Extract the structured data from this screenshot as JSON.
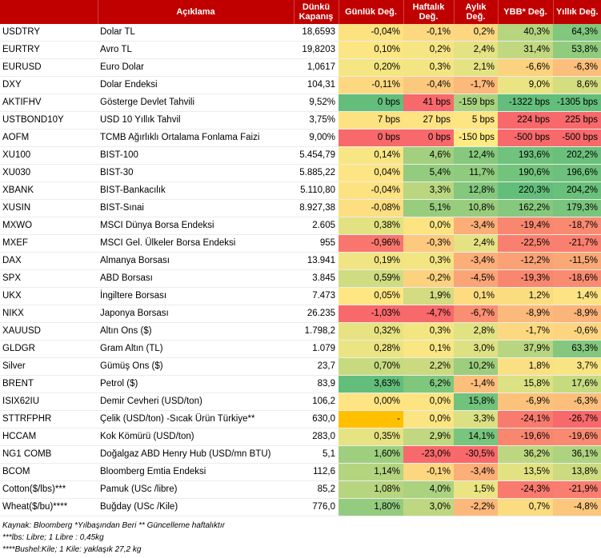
{
  "headers": [
    "",
    "Açıklama",
    "Dünkü Kapanış",
    "Günlük Değ.",
    "Haftalık Değ.",
    "Aylık Değ.",
    "YBB* Değ.",
    "Yıllık Değ."
  ],
  "rows": [
    {
      "code": "USDTRY",
      "desc": "Dolar TL",
      "close": "18,6593",
      "d": "-0,04%",
      "w": "-0,1%",
      "m": "0,2%",
      "ybb": "40,3%",
      "y": "64,3%",
      "colors": [
        "#fde281",
        "#fcd880",
        "#fcd680",
        "#b5d57f",
        "#81c77e"
      ]
    },
    {
      "code": "EURTRY",
      "desc": "Avro TL",
      "close": "19,8203",
      "d": "0,10%",
      "w": "0,2%",
      "m": "2,4%",
      "ybb": "31,4%",
      "y": "53,8%",
      "colors": [
        "#fbe683",
        "#f5e583",
        "#e4e283",
        "#c1d880",
        "#91cc7e"
      ]
    },
    {
      "code": "EURUSD",
      "desc": "Euro Dolar",
      "close": "1,0617",
      "d": "0,20%",
      "w": "0,3%",
      "m": "2,1%",
      "ybb": "-6,6%",
      "y": "-6,3%",
      "colors": [
        "#f3e683",
        "#f4e583",
        "#e5e283",
        "#fcd27f",
        "#fbbe7b"
      ]
    },
    {
      "code": "DXY",
      "desc": "Dolar Endeksi",
      "close": "104,31",
      "d": "-0,11%",
      "w": "-0,4%",
      "m": "-1,7%",
      "ybb": "9,0%",
      "y": "8,6%",
      "colors": [
        "#fdd880",
        "#fcc87d",
        "#fcb97a",
        "#eae483",
        "#d5dd81"
      ]
    },
    {
      "code": "AKTIFHV",
      "desc": "Gösterge Devlet Tahvili",
      "close": "9,52%",
      "d": "0 bps",
      "w": "41 bps",
      "m": "-159 bps",
      "ybb": "-1322 bps",
      "y": "-1305 bps",
      "colors": [
        "#63be7b",
        "#f8696b",
        "#a9d27f",
        "#63be7b",
        "#63be7b"
      ]
    },
    {
      "code": "USTBOND10Y",
      "desc": "USD 10 Yıllık Tahvil",
      "close": "3,75%",
      "d": "7 bps",
      "w": "27 bps",
      "m": "5 bps",
      "ybb": "224 bps",
      "y": "225 bps",
      "colors": [
        "#fde282",
        "#fee383",
        "#fee583",
        "#f8696b",
        "#f8696b"
      ]
    },
    {
      "code": "AOFM",
      "desc": "TCMB Ağırlıklı Ortalama Fonlama Faizi",
      "close": "9,00%",
      "d": "0 bps",
      "w": "0 bps",
      "m": "-150 bps",
      "ybb": "-500 bps",
      "y": "-500 bps",
      "colors": [
        "#f8696b",
        "#f8696b",
        "#ffeb84",
        "#f8696b",
        "#f8696b"
      ]
    },
    {
      "code": "XU100",
      "desc": "BIST-100",
      "close": "5.454,79",
      "d": "0,14%",
      "w": "4,6%",
      "m": "12,4%",
      "ybb": "193,6%",
      "y": "202,2%",
      "colors": [
        "#f7e683",
        "#a2d07f",
        "#86c97e",
        "#70c27c",
        "#6ac07b"
      ]
    },
    {
      "code": "XU030",
      "desc": "BIST-30",
      "close": "5.885,22",
      "d": "0,04%",
      "w": "5,4%",
      "m": "11,7%",
      "ybb": "190,6%",
      "y": "196,6%",
      "colors": [
        "#fee583",
        "#93cc7e",
        "#8ecb7e",
        "#72c37c",
        "#6dc17c"
      ]
    },
    {
      "code": "XBANK",
      "desc": "BIST-Bankacılık",
      "close": "5.110,80",
      "d": "-0,04%",
      "w": "3,3%",
      "m": "12,8%",
      "ybb": "220,3%",
      "y": "204,2%",
      "colors": [
        "#fde281",
        "#bad780",
        "#84c87e",
        "#63be7b",
        "#69c07b"
      ]
    },
    {
      "code": "XUSIN",
      "desc": "BIST-Sınai",
      "close": "8.927,38",
      "d": "-0,08%",
      "w": "5,1%",
      "m": "10,8%",
      "ybb": "162,2%",
      "y": "179,3%",
      "colors": [
        "#fdde81",
        "#98cd7e",
        "#99cd7e",
        "#86c97e",
        "#79c57d"
      ]
    },
    {
      "code": "MXWO",
      "desc": "MSCI Dünya Borsa Endeksi",
      "close": "2.605",
      "d": "0,38%",
      "w": "0,0%",
      "m": "-3,4%",
      "ybb": "-19,4%",
      "y": "-18,7%",
      "colors": [
        "#e2e282",
        "#fce482",
        "#fcae78",
        "#f9876f",
        "#f98a71"
      ]
    },
    {
      "code": "MXEF",
      "desc": "MSCI Gel. Ülkeler Borsa Endeksi",
      "close": "955",
      "d": "-0,96%",
      "w": "-0,3%",
      "m": "2,4%",
      "ybb": "-22,5%",
      "y": "-21,7%",
      "colors": [
        "#f8766e",
        "#fcc97e",
        "#e5e283",
        "#f9806f",
        "#f97f6f"
      ]
    },
    {
      "code": "DAX",
      "desc": "Almanya Borsası",
      "close": "13.941",
      "d": "0,19%",
      "w": "0,3%",
      "m": "-3,4%",
      "ybb": "-12,2%",
      "y": "-11,5%",
      "colors": [
        "#f1e583",
        "#f4e583",
        "#fcae78",
        "#faa275",
        "#faa976"
      ]
    },
    {
      "code": "SPX",
      "desc": "ABD Borsası",
      "close": "3.845",
      "d": "0,59%",
      "w": "-0,2%",
      "m": "-4,5%",
      "ybb": "-19,3%",
      "y": "-18,6%",
      "colors": [
        "#cfdc81",
        "#fcd27f",
        "#fba576",
        "#f9876f",
        "#f98b71"
      ]
    },
    {
      "code": "UKX",
      "desc": "İngiltere Borsası",
      "close": "7.473",
      "d": "0,05%",
      "w": "1,9%",
      "m": "0,1%",
      "ybb": "1,2%",
      "y": "1,4%",
      "colors": [
        "#fee683",
        "#d3dc81",
        "#fddc81",
        "#fbdd81",
        "#fde383"
      ]
    },
    {
      "code": "NIKX",
      "desc": "Japonya Borsası",
      "close": "26.235",
      "d": "-1,03%",
      "w": "-4,7%",
      "m": "-6,7%",
      "ybb": "-8,9%",
      "y": "-8,9%",
      "colors": [
        "#f8696b",
        "#f8696b",
        "#f98f72",
        "#fbba7b",
        "#fbb479"
      ]
    },
    {
      "code": "XAUUSD",
      "desc": "Altın Ons ($)",
      "close": "1.798,2",
      "d": "0,32%",
      "w": "0,3%",
      "m": "2,8%",
      "ybb": "-1,7%",
      "y": "-0,6%",
      "colors": [
        "#e7e382",
        "#f4e583",
        "#e1e282",
        "#fcd880",
        "#fdd580"
      ]
    },
    {
      "code": "GLDGR",
      "desc": "Gram Altın (TL)",
      "close": "1.079",
      "d": "0,28%",
      "w": "0,1%",
      "m": "3,0%",
      "ybb": "37,9%",
      "y": "63,3%",
      "colors": [
        "#ebe482",
        "#fae683",
        "#dee182",
        "#b8d67f",
        "#83c87e"
      ]
    },
    {
      "code": "Silver",
      "desc": "Gümüş Ons ($)",
      "close": "23,7",
      "d": "0,70%",
      "w": "2,2%",
      "m": "10,2%",
      "ybb": "1,8%",
      "y": "3,7%",
      "colors": [
        "#c8da80",
        "#cbda80",
        "#9dce7f",
        "#fae083",
        "#f9e483"
      ]
    },
    {
      "code": "BRENT",
      "desc": "Petrol ($)",
      "close": "83,9",
      "d": "3,63%",
      "w": "6,2%",
      "m": "-1,4%",
      "ybb": "15,8%",
      "y": "17,6%",
      "colors": [
        "#63be7b",
        "#7ec77d",
        "#fcbe7b",
        "#dce183",
        "#c6da80"
      ]
    },
    {
      "code": "ISIX62IU",
      "desc": "Demir Cevheri (USD/ton)",
      "close": "106,2",
      "d": "0,00%",
      "w": "0,0%",
      "m": "15,8%",
      "ybb": "-6,9%",
      "y": "-6,3%",
      "colors": [
        "#fee483",
        "#fce482",
        "#70c27c",
        "#fcc27c",
        "#fbbe7b"
      ]
    },
    {
      "code": "STTRFPHR",
      "desc": "Çelik (USD/ton) -Sıcak Ürün Türkiye**",
      "close": "630,0",
      "d": "-",
      "w": "0,0%",
      "m": "3,3%",
      "ybb": "-24,1%",
      "y": "-26,7%",
      "colors": [
        "#ffc000",
        "#fce482",
        "#dbe082",
        "#f97b6e",
        "#f8696b"
      ]
    },
    {
      "code": "HCCAM",
      "desc": "Kok Kömürü (USD/ton)",
      "close": "283,0",
      "d": "0,35%",
      "w": "2,9%",
      "m": "14,1%",
      "ybb": "-19,6%",
      "y": "-19,6%",
      "colors": [
        "#e6e382",
        "#c1d880",
        "#79c57d",
        "#f9866f",
        "#f98a71"
      ]
    },
    {
      "code": "NG1 COMB",
      "desc": "Doğalgaz ABD Henry Hub (USD/mn BTU)",
      "close": "5,1",
      "d": "1,60%",
      "w": "-23,0%",
      "m": "-30,5%",
      "ybb": "36,2%",
      "y": "36,1%",
      "colors": [
        "#9ecf7f",
        "#f8696b",
        "#f8696b",
        "#bdd780",
        "#aed37f"
      ]
    },
    {
      "code": "BCOM",
      "desc": "Bloomberg Emtia Endeksi",
      "close": "112,6",
      "d": "1,14%",
      "w": "-0,1%",
      "m": "-3,4%",
      "ybb": "13,5%",
      "y": "13,8%",
      "colors": [
        "#b4d47f",
        "#fcd680",
        "#fcae78",
        "#e2e283",
        "#ccdb80"
      ]
    },
    {
      "code": "Cotton($/lbs)***",
      "desc": "Pamuk (USc /libre)",
      "close": "85,2",
      "d": "1,08%",
      "w": "4,0%",
      "m": "1,5%",
      "ybb": "-24,3%",
      "y": "-21,9%",
      "colors": [
        "#b7d57f",
        "#abd27f",
        "#eae483",
        "#f97a6e",
        "#f97e6f"
      ]
    },
    {
      "code": "Wheat($/bu)****",
      "desc": "Buğday (USc /Kile)",
      "close": "776,0",
      "d": "1,80%",
      "w": "3,0%",
      "m": "-2,2%",
      "ybb": "0,7%",
      "y": "-4,8%",
      "colors": [
        "#93cc7e",
        "#bfd780",
        "#fcb87a",
        "#fbdc81",
        "#fcc67d"
      ]
    }
  ],
  "footnotes": [
    "Kaynak: Bloomberg *Yılbaşından Beri  ** Güncelleme haftalıktır",
    "***lbs: Libre; 1 Libre : 0,45kg",
    "****Bushel:Kile; 1 Kile: yaklaşık 27,2 kg"
  ]
}
